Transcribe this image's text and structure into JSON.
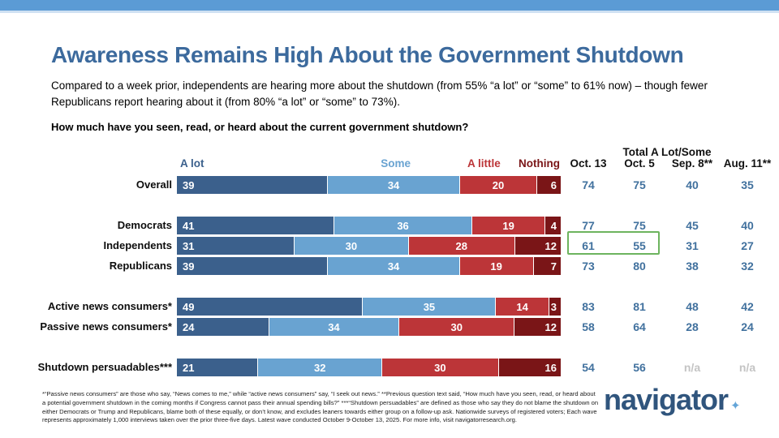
{
  "header": {
    "title": "Awareness Remains High About the Government Shutdown",
    "subtitle": "Compared to a week prior, independents are hearing more about the shutdown (from 55% “a lot” or “some” to 61% now) – though fewer Republicans report hearing about it (from 80% “a lot” or “some” to 73%).",
    "question": "How much have you seen, read, or heard about the current government shutdown?"
  },
  "chart_data": {
    "type": "bar",
    "stacked": true,
    "orientation": "horizontal",
    "legend": [
      "A lot",
      "Some",
      "A little",
      "Nothing"
    ],
    "colors": [
      "#3b608c",
      "#69a3d1",
      "#bc3538",
      "#7a1517"
    ],
    "totals_group_label": "Total A Lot/Some",
    "wave_labels": [
      "Oct. 13",
      "Oct. 5",
      "Sep. 8**",
      "Aug. 11**"
    ],
    "rows": [
      {
        "id": "overall",
        "label": "Overall",
        "values": [
          39,
          34,
          20,
          6
        ],
        "totals": [
          "74",
          "75",
          "40",
          "35"
        ],
        "highlighted": false
      },
      {
        "id": "democrats",
        "label": "Democrats",
        "values": [
          41,
          36,
          19,
          4
        ],
        "totals": [
          "77",
          "75",
          "45",
          "40"
        ],
        "highlighted": false
      },
      {
        "id": "independents",
        "label": "Independents",
        "values": [
          31,
          30,
          28,
          12
        ],
        "totals": [
          "61",
          "55",
          "31",
          "27"
        ],
        "highlighted": true
      },
      {
        "id": "republicans",
        "label": "Republicans",
        "values": [
          39,
          34,
          19,
          7
        ],
        "totals": [
          "73",
          "80",
          "38",
          "32"
        ],
        "highlighted": false
      },
      {
        "id": "active-news-consumers",
        "label": "Active news consumers*",
        "values": [
          49,
          35,
          14,
          3
        ],
        "totals": [
          "83",
          "81",
          "48",
          "42"
        ],
        "highlighted": false
      },
      {
        "id": "passive-news-consumers",
        "label": "Passive news consumers*",
        "values": [
          24,
          34,
          30,
          12
        ],
        "totals": [
          "58",
          "64",
          "28",
          "24"
        ],
        "highlighted": false
      },
      {
        "id": "shutdown-persuadables",
        "label": "Shutdown persuadables***",
        "values": [
          21,
          32,
          30,
          16
        ],
        "totals": [
          "54",
          "56",
          "n/a",
          "n/a"
        ],
        "highlighted": false
      }
    ],
    "highlight_color": "#6db45e",
    "na_color": "#c4c4c4",
    "totals_text_color": "#41719e"
  },
  "footer": {
    "note": "*“Passive news consumers” are those who say, “News comes to me,” while “active news consumers” say, “I seek out news.” **Previous question text said, “How much have you seen, read, or heard about a potential government shutdown in the coming months if Congress cannot pass their annual spending bills?” ***“Shutdown persuadables” are defined as those who say they do not blame the shutdown on either Democrats or Trump and Republicans, blame both of these equally, or don’t know, and excludes leaners towards either group on a follow-up ask. Nationwide surveys of registered voters; Each wave represents approximately 1,000 interviews taken over the prior three-five days. Latest wave conducted October 9-October 13, 2025. For more info, visit navigatorresearch.org.",
    "logo_text": "navigator",
    "logo_star": "✦"
  },
  "theme": {
    "accent_bar_color": "#5b9bd5",
    "accent_strip_color": "#cfe1f2",
    "title_color": "#3c6a9d",
    "logo_color": "#30557d",
    "logo_star_color": "#64a5d8"
  }
}
